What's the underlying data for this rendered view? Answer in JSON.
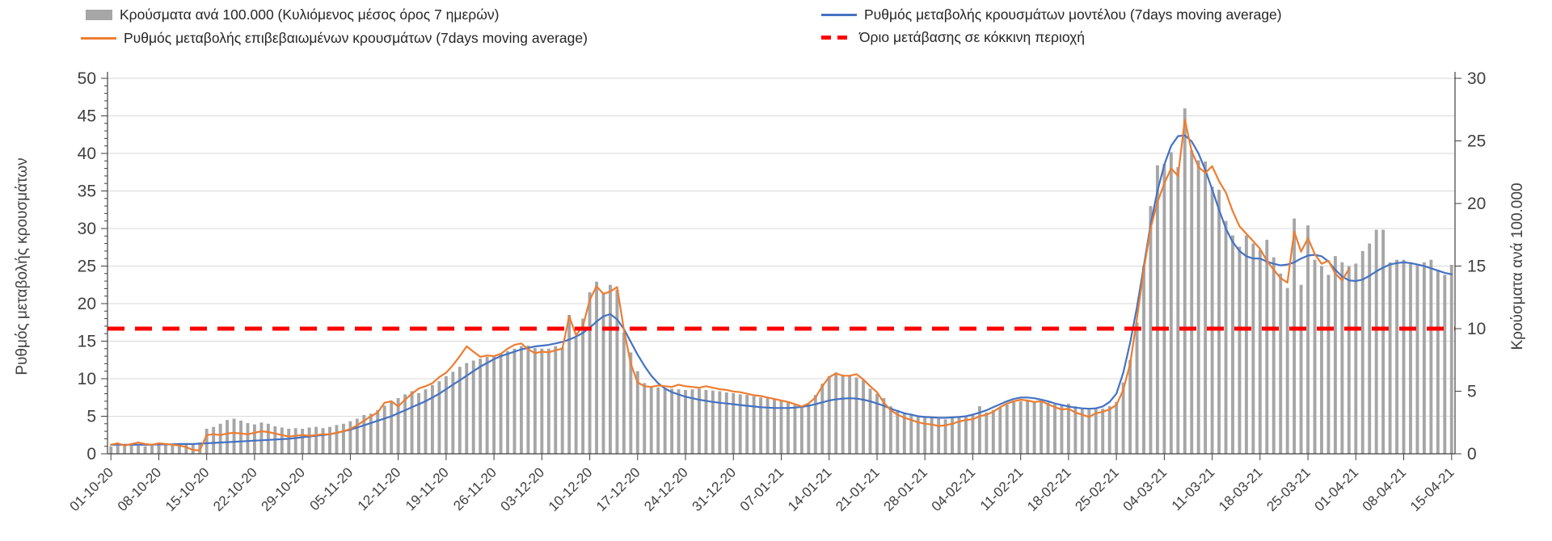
{
  "legend": {
    "bars": "Κρούσματα ανά 100.000 (Κυλιόμενος μέσος όρος 7 ημερών)",
    "confirmed": "Ρυθμός μεταβολής επιβεβαιωμένων κρουσμάτων (7days moving average)",
    "model": "Ρυθμός μεταβολής κρουσμάτων μοντέλου (7days moving average)",
    "threshold": "Όριο μετάβασης σε κόκκινη περιοχή"
  },
  "colors": {
    "bar": "#a6a6a6",
    "model": "#4472c4",
    "confirmed": "#ed7d31",
    "threshold": "#ff0000",
    "grid": "#d9d9d9",
    "axis": "#595959",
    "text": "#404040"
  },
  "chart_data": {
    "type": "bar+line",
    "title": "",
    "grid": true,
    "legend_position": "top",
    "x_tick_interval_days": 7,
    "x_tick_labels": [
      "01-10-20",
      "08-10-20",
      "15-10-20",
      "22-10-20",
      "29-10-20",
      "05-11-20",
      "12-11-20",
      "19-11-20",
      "26-11-20",
      "03-12-20",
      "10-12-20",
      "17-12-20",
      "24-12-20",
      "31-12-20",
      "07-01-21",
      "14-01-21",
      "21-01-21",
      "28-01-21",
      "04-02-21",
      "11-02-21",
      "18-02-21",
      "25-02-21",
      "04-03-21",
      "11-03-21",
      "18-03-21",
      "25-03-21",
      "01-04-21",
      "08-04-21",
      "15-04-21"
    ],
    "left_axis": {
      "label": "Ρυθμός μεταβολής κρουσμάτων",
      "min": 0,
      "max": 50,
      "step": 5,
      "minor_step": 1
    },
    "right_axis": {
      "label": "Κρούσματα ανά 100.000",
      "min": 0,
      "max": 30,
      "step": 5
    },
    "threshold": {
      "axis": "right",
      "value": 10
    },
    "series": [
      {
        "id": "cases_per_100k",
        "type": "bar",
        "axis": "right",
        "values": [
          0.6,
          0.65,
          0.6,
          0.65,
          0.65,
          0.6,
          0.65,
          0.7,
          0.8,
          0.7,
          0.8,
          0.85,
          0.8,
          0.9,
          2.0,
          2.15,
          2.4,
          2.7,
          2.8,
          2.65,
          2.45,
          2.35,
          2.5,
          2.4,
          2.2,
          2.1,
          2.0,
          2.05,
          2.0,
          2.1,
          2.15,
          2.05,
          2.15,
          2.3,
          2.4,
          2.6,
          2.8,
          3.1,
          3.2,
          3.5,
          3.85,
          4.15,
          4.45,
          4.75,
          5.0,
          4.85,
          5.15,
          5.5,
          5.8,
          6.2,
          6.55,
          6.95,
          7.25,
          7.45,
          7.6,
          7.75,
          7.85,
          8.05,
          8.2,
          8.4,
          8.6,
          8.65,
          8.45,
          8.4,
          8.4,
          8.6,
          8.5,
          11.1,
          9.3,
          10.8,
          12.9,
          13.75,
          12.85,
          13.5,
          13.1,
          9.7,
          8.1,
          6.6,
          5.65,
          5.4,
          5.3,
          5.2,
          5.2,
          5.15,
          5.1,
          5.15,
          5.2,
          5.1,
          5.05,
          5.0,
          4.9,
          4.85,
          4.75,
          4.7,
          4.6,
          4.5,
          4.45,
          4.4,
          4.3,
          4.1,
          3.9,
          3.8,
          3.95,
          4.7,
          5.6,
          6.2,
          6.5,
          6.3,
          6.2,
          6.1,
          5.9,
          5.2,
          4.8,
          4.45,
          3.8,
          3.5,
          3.3,
          3.2,
          3.05,
          3.0,
          2.9,
          2.8,
          2.75,
          2.9,
          3.0,
          3.05,
          3.2,
          3.8,
          3.3,
          3.5,
          3.7,
          3.95,
          4.15,
          4.2,
          4.2,
          4.15,
          4.2,
          4.1,
          3.95,
          3.95,
          4.0,
          3.8,
          3.65,
          3.6,
          3.7,
          3.6,
          3.8,
          4.15,
          5.7,
          7.5,
          10.5,
          15.0,
          19.8,
          23.05,
          23.15,
          24.1,
          22.9,
          27.6,
          24.25,
          23.45,
          23.35,
          21.35,
          21.1,
          18.6,
          17.45,
          16.55,
          17.45,
          16.8,
          16.3,
          17.1,
          15.7,
          14.4,
          13.25,
          18.8,
          13.5,
          18.25,
          15.5,
          15.0,
          14.3,
          15.8,
          15.3,
          15.0,
          15.2,
          16.2,
          16.8,
          17.9,
          17.9,
          15.3,
          15.5,
          15.5,
          15.3,
          15.1,
          15.3,
          15.5,
          14.7,
          14.3,
          15.1
        ]
      },
      {
        "id": "confirmed_rate",
        "type": "line",
        "axis": "left",
        "values": [
          1.2,
          1.4,
          1.1,
          1.3,
          1.5,
          1.3,
          1.2,
          1.4,
          1.3,
          1.2,
          1.1,
          0.9,
          0.5,
          0.45,
          2.5,
          2.6,
          2.5,
          2.7,
          2.8,
          2.7,
          2.6,
          2.8,
          3.0,
          2.9,
          2.7,
          2.5,
          2.3,
          2.4,
          2.5,
          2.4,
          2.5,
          2.6,
          2.6,
          2.8,
          3.0,
          3.3,
          3.8,
          4.4,
          5.0,
          5.5,
          6.8,
          7.0,
          6.3,
          7.2,
          8.0,
          8.7,
          9.0,
          9.4,
          10.2,
          10.8,
          11.8,
          13.0,
          14.3,
          13.6,
          12.9,
          13.1,
          13.0,
          13.3,
          14.0,
          14.5,
          14.7,
          13.9,
          13.4,
          13.6,
          13.5,
          13.8,
          14.0,
          18.3,
          15.8,
          17.0,
          20.5,
          22.3,
          21.3,
          21.6,
          22.2,
          16.5,
          12.0,
          9.5,
          9.0,
          8.9,
          9.1,
          9.0,
          8.9,
          9.2,
          9.0,
          8.9,
          8.8,
          9.0,
          8.8,
          8.6,
          8.5,
          8.3,
          8.2,
          8.0,
          7.8,
          7.7,
          7.5,
          7.3,
          7.1,
          6.9,
          6.6,
          6.3,
          6.7,
          7.5,
          9.0,
          10.2,
          10.7,
          10.4,
          10.4,
          10.6,
          9.9,
          9.0,
          8.2,
          6.8,
          5.8,
          5.2,
          4.8,
          4.5,
          4.2,
          4.0,
          3.9,
          3.7,
          3.8,
          4.0,
          4.3,
          4.5,
          4.6,
          5.0,
          5.2,
          5.6,
          6.2,
          6.7,
          7.0,
          7.2,
          7.1,
          6.9,
          7.0,
          6.6,
          6.2,
          5.9,
          6.0,
          5.5,
          5.2,
          4.9,
          5.4,
          5.6,
          5.9,
          6.5,
          8.5,
          12.0,
          18.0,
          24.5,
          30.0,
          33.5,
          36.0,
          38.0,
          37.0,
          44.5,
          40.3,
          38.2,
          37.4,
          38.3,
          36.3,
          34.8,
          32.3,
          30.3,
          29.3,
          28.3,
          27.3,
          25.7,
          24.5,
          23.4,
          22.8,
          29.6,
          26.9,
          28.7,
          26.6,
          25.3,
          25.7,
          24.0,
          23.1,
          24.6,
          null,
          null,
          null,
          null,
          null,
          null,
          null,
          null,
          null,
          null,
          null,
          null,
          null,
          null,
          null
        ]
      },
      {
        "id": "model_rate",
        "type": "line",
        "axis": "left",
        "values": [
          1.2,
          1.2,
          1.2,
          1.2,
          1.2,
          1.2,
          1.2,
          1.25,
          1.25,
          1.25,
          1.3,
          1.3,
          1.3,
          1.35,
          1.4,
          1.45,
          1.5,
          1.55,
          1.6,
          1.65,
          1.7,
          1.75,
          1.8,
          1.85,
          1.9,
          1.95,
          2.0,
          2.1,
          2.2,
          2.3,
          2.4,
          2.5,
          2.6,
          2.8,
          3.0,
          3.2,
          3.5,
          3.8,
          4.1,
          4.4,
          4.7,
          5.0,
          5.4,
          5.8,
          6.2,
          6.6,
          7.0,
          7.5,
          8.0,
          8.6,
          9.2,
          9.8,
          10.4,
          11.0,
          11.6,
          12.1,
          12.6,
          13.0,
          13.3,
          13.6,
          13.9,
          14.1,
          14.3,
          14.4,
          14.5,
          14.7,
          14.9,
          15.2,
          15.6,
          16.1,
          16.8,
          17.6,
          18.3,
          18.6,
          17.9,
          16.6,
          14.9,
          13.2,
          11.7,
          10.4,
          9.4,
          8.7,
          8.2,
          7.9,
          7.6,
          7.4,
          7.2,
          7.05,
          6.9,
          6.8,
          6.7,
          6.6,
          6.5,
          6.4,
          6.3,
          6.2,
          6.15,
          6.1,
          6.1,
          6.1,
          6.15,
          6.25,
          6.4,
          6.6,
          6.85,
          7.1,
          7.25,
          7.35,
          7.4,
          7.35,
          7.2,
          7.0,
          6.7,
          6.4,
          6.0,
          5.7,
          5.4,
          5.2,
          5.0,
          4.9,
          4.85,
          4.8,
          4.8,
          4.85,
          4.9,
          5.0,
          5.2,
          5.5,
          5.8,
          6.2,
          6.6,
          7.0,
          7.3,
          7.5,
          7.5,
          7.4,
          7.2,
          7.0,
          6.7,
          6.5,
          6.3,
          6.15,
          6.05,
          6.0,
          6.05,
          6.3,
          6.9,
          8.0,
          10.8,
          14.8,
          19.5,
          25.0,
          30.5,
          35.0,
          38.5,
          41.0,
          42.3,
          42.4,
          41.6,
          40.0,
          37.8,
          35.2,
          32.5,
          30.0,
          28.2,
          27.0,
          26.3,
          26.0,
          26.0,
          25.6,
          25.3,
          25.1,
          25.2,
          25.5,
          26.0,
          26.4,
          26.5,
          26.3,
          25.6,
          24.5,
          23.6,
          23.1,
          23.0,
          23.2,
          23.7,
          24.3,
          24.8,
          25.2,
          25.4,
          25.5,
          25.4,
          25.2,
          25.0,
          24.7,
          24.4,
          24.1,
          23.9
        ]
      }
    ]
  }
}
